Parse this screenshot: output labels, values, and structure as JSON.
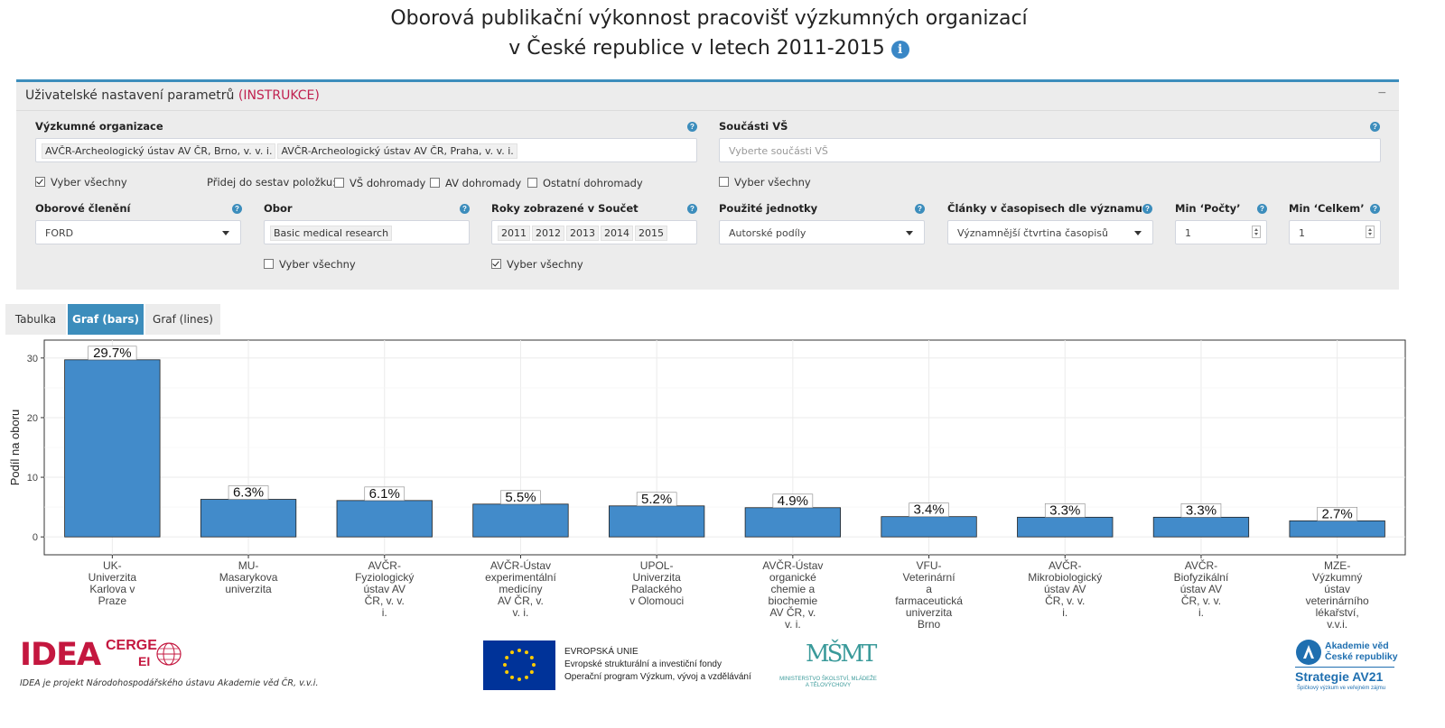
{
  "page": {
    "title_line1": "Oborová publikační výkonnost pracovišť výzkumných organizací",
    "title_line2": "v České republice v letech 2011-2015",
    "info_icon": "i"
  },
  "panel": {
    "title": "Uživatelské nastavení parametrů",
    "instructions_link": "(INSTRUKCE)",
    "collapse_icon": "−",
    "help_icon": "?",
    "organizations": {
      "label": "Výzkumné organizace",
      "tags": [
        "AVČR-Archeologický ústav AV ČR, Brno, v. v. i.",
        "AVČR-Archeologický ústav AV ČR, Praha, v. v. i."
      ],
      "select_all": "Vyber všechny",
      "select_all_checked": true
    },
    "add_to_set": {
      "label": "Přidej do sestav položku:",
      "options": [
        {
          "label": "VŠ dohromady",
          "checked": false
        },
        {
          "label": "AV dohromady",
          "checked": false
        },
        {
          "label": "Ostatní dohromady",
          "checked": false
        }
      ]
    },
    "university_parts": {
      "label": "Součásti VŠ",
      "placeholder": "Vyberte součásti VŠ",
      "select_all": "Vyber všechny",
      "select_all_checked": false
    },
    "field_classification": {
      "label": "Oborové členění",
      "value": "FORD"
    },
    "field": {
      "label": "Obor",
      "tags": [
        "Basic medical research"
      ],
      "select_all": "Vyber všechny",
      "select_all_checked": false
    },
    "years": {
      "label": "Roky zobrazené v Součet",
      "tags": [
        "2011",
        "2012",
        "2013",
        "2014",
        "2015"
      ],
      "select_all": "Vyber všechny",
      "select_all_checked": true
    },
    "units": {
      "label": "Použité jednotky",
      "value": "Autorské podíly"
    },
    "articles": {
      "label": "Články v časopisech dle významu",
      "value": "Významnější čtvrtina časopisů"
    },
    "min_count": {
      "label": "Min ‘Počty’",
      "value": "1"
    },
    "min_total": {
      "label": "Min ‘Celkem’",
      "value": "1"
    }
  },
  "tabs": [
    {
      "label": "Tabulka",
      "active": false
    },
    {
      "label": "Graf (bars)",
      "active": true
    },
    {
      "label": "Graf (lines)",
      "active": false
    }
  ],
  "chart_data": {
    "type": "bar",
    "ylabel": "Podíl na oboru",
    "xlabel": "",
    "ylim": [
      -3,
      33
    ],
    "yticks": [
      0,
      10,
      20,
      30
    ],
    "grid": true,
    "bar_color": "#428bca",
    "categories": [
      "UK-Univerzita Karlova v Praze",
      "MU-Masarykova univerzita",
      "AVČR-Fyziologický ústav AV ČR, v. v. i.",
      "AVČR-Ústav experimentální medicíny AV ČR, v. v. i.",
      "UPOL-Univerzita Palackého v Olomouci",
      "AVČR-Ústav organické chemie a biochemie AV ČR, v. v. i.",
      "VFU-Veterinární a farmaceutická univerzita Brno",
      "AVČR-Mikrobiologický ústav AV ČR, v. v. i.",
      "AVČR-Biofyzikální ústav AV ČR, v. v. i.",
      "MZE-Výzkumný ústav veterinárního lékařství, v.v.i."
    ],
    "category_lines": [
      [
        "UK-",
        "Univerzita",
        "Karlova v",
        "Praze"
      ],
      [
        "MU-",
        "Masarykova",
        "univerzita"
      ],
      [
        "AVČR-",
        "Fyziologický",
        "ústav AV",
        "ČR, v. v.",
        "i."
      ],
      [
        "AVČR-Ústav",
        "experimentální",
        "medicíny",
        "AV ČR, v.",
        "v. i."
      ],
      [
        "UPOL-",
        "Univerzita",
        "Palackého",
        "v Olomouci"
      ],
      [
        "AVČR-Ústav",
        "organické",
        "chemie a",
        "biochemie",
        "AV ČR, v.",
        "v. i."
      ],
      [
        "VFU-",
        "Veterinární",
        "a",
        "farmaceutická",
        "univerzita",
        "Brno"
      ],
      [
        "AVČR-",
        "Mikrobiologický",
        "ústav AV",
        "ČR, v. v.",
        "i."
      ],
      [
        "AVČR-",
        "Biofyzikální",
        "ústav AV",
        "ČR, v. v.",
        "i."
      ],
      [
        "MZE-",
        "Výzkumný",
        "ústav",
        "veterinárního",
        "lékařství,",
        "v.v.i."
      ]
    ],
    "values": [
      29.7,
      6.3,
      6.1,
      5.5,
      5.2,
      4.9,
      3.4,
      3.3,
      3.3,
      2.7
    ],
    "labels": [
      "29.7%",
      "6.3%",
      "6.1%",
      "5.5%",
      "5.2%",
      "4.9%",
      "3.4%",
      "3.3%",
      "3.3%",
      "2.7%"
    ]
  },
  "footer": {
    "idea_logo": "IDEA",
    "cerge_logo": "CERGE",
    "ei_logo": "EI",
    "idea_caption": "IDEA je projekt Národohospodářského ústavu Akademie věd ČR, v.v.i.",
    "eu_line1": "EVROPSKÁ UNIE",
    "eu_line2": "Evropské strukturální a investiční fondy",
    "eu_line3": "Operační program Výzkum, vývoj a vzdělávání",
    "msmt_logo": "MŠMT",
    "msmt_caption": "MINISTERSTVO ŠKOLSTVÍ, MLÁDEŽE A TĚLOVÝCHOVY",
    "av_name": "Akademie věd České republiky",
    "av_strategy": "Strategie AV21",
    "av_sub": "Špičkový výzkum ve veřejném zájmu"
  }
}
